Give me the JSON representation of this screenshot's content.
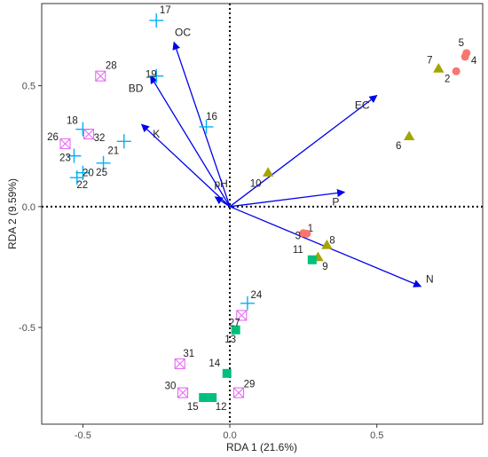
{
  "chart_data": {
    "type": "scatter",
    "subtype": "RDA biplot",
    "xlabel": "RDA 1 (21.6%)",
    "ylabel": "RDA 2 (9.59%)",
    "xlim": [
      -0.64,
      0.86
    ],
    "ylim": [
      -0.9,
      0.84
    ],
    "x_ticks": [
      -0.5,
      0.0,
      0.5
    ],
    "y_ticks": [
      -0.5,
      0.0,
      0.5
    ],
    "x_tick_labels": [
      "-0.5",
      "0.0",
      "0.5"
    ],
    "y_tick_labels": [
      "-0.5",
      "0.0",
      "0.5"
    ],
    "grid": false,
    "reference_lines": {
      "x": 0,
      "y": 0,
      "style": "dotted"
    },
    "vector_color": "#0000ee",
    "vectors": [
      {
        "label": "OC",
        "x": -0.19,
        "y": 0.68,
        "label_x": -0.16,
        "label_y": 0.72
      },
      {
        "label": "BD",
        "x": -0.27,
        "y": 0.54,
        "label_x": -0.32,
        "label_y": 0.49
      },
      {
        "label": "K",
        "x": -0.3,
        "y": 0.34,
        "label_x": -0.25,
        "label_y": 0.3
      },
      {
        "label": "pH",
        "x": -0.05,
        "y": 0.04,
        "label_x": -0.03,
        "label_y": 0.095
      },
      {
        "label": "EC",
        "x": 0.5,
        "y": 0.46,
        "label_x": 0.45,
        "label_y": 0.42
      },
      {
        "label": "P",
        "x": 0.39,
        "y": 0.06,
        "label_x": 0.36,
        "label_y": 0.02
      },
      {
        "label": "N",
        "x": 0.65,
        "y": -0.33,
        "label_x": 0.68,
        "label_y": -0.3
      }
    ],
    "series": [
      {
        "marker": "circle",
        "color": "#f8766d",
        "points": [
          {
            "id": "1",
            "x": 0.25,
            "y": -0.11
          },
          {
            "id": "3",
            "x": 0.262,
            "y": -0.112
          },
          {
            "id": "4",
            "x": 0.8,
            "y": 0.62
          },
          {
            "id": "5",
            "x": 0.805,
            "y": 0.635
          },
          {
            "id": "2",
            "x": 0.77,
            "y": 0.56
          }
        ]
      },
      {
        "marker": "triangle",
        "color": "#a3a500",
        "points": [
          {
            "id": "6",
            "x": 0.61,
            "y": 0.29
          },
          {
            "id": "7",
            "x": 0.71,
            "y": 0.57
          },
          {
            "id": "8",
            "x": 0.33,
            "y": -0.16
          },
          {
            "id": "9",
            "x": 0.3,
            "y": -0.21
          },
          {
            "id": "10",
            "x": 0.13,
            "y": 0.14
          }
        ]
      },
      {
        "marker": "square",
        "color": "#00bf7d",
        "points": [
          {
            "id": "11",
            "x": 0.28,
            "y": -0.22
          },
          {
            "id": "12",
            "x": -0.06,
            "y": -0.79
          },
          {
            "id": "13",
            "x": 0.02,
            "y": -0.51
          },
          {
            "id": "14",
            "x": -0.01,
            "y": -0.69
          },
          {
            "id": "15",
            "x": -0.09,
            "y": -0.79
          }
        ]
      },
      {
        "marker": "plus",
        "color": "#00b0f6",
        "points": [
          {
            "id": "16",
            "x": -0.08,
            "y": 0.33
          },
          {
            "id": "17",
            "x": -0.25,
            "y": 0.77
          },
          {
            "id": "18",
            "x": -0.5,
            "y": 0.32
          },
          {
            "id": "19",
            "x": -0.25,
            "y": 0.54
          },
          {
            "id": "20",
            "x": -0.5,
            "y": 0.14
          },
          {
            "id": "21",
            "x": -0.36,
            "y": 0.27
          },
          {
            "id": "22",
            "x": -0.52,
            "y": 0.12
          },
          {
            "id": "23",
            "x": -0.53,
            "y": 0.21
          },
          {
            "id": "24",
            "x": 0.06,
            "y": -0.4
          },
          {
            "id": "25",
            "x": -0.43,
            "y": 0.18
          }
        ]
      },
      {
        "marker": "square-x",
        "color": "#e76bf3",
        "points": [
          {
            "id": "26",
            "x": -0.56,
            "y": 0.26
          },
          {
            "id": "27",
            "x": 0.04,
            "y": -0.45
          },
          {
            "id": "28",
            "x": -0.44,
            "y": 0.54
          },
          {
            "id": "29",
            "x": 0.03,
            "y": -0.77
          },
          {
            "id": "30",
            "x": -0.16,
            "y": -0.77
          },
          {
            "id": "31",
            "x": -0.17,
            "y": -0.65
          },
          {
            "id": "32",
            "x": -0.48,
            "y": 0.3
          }
        ]
      }
    ]
  }
}
